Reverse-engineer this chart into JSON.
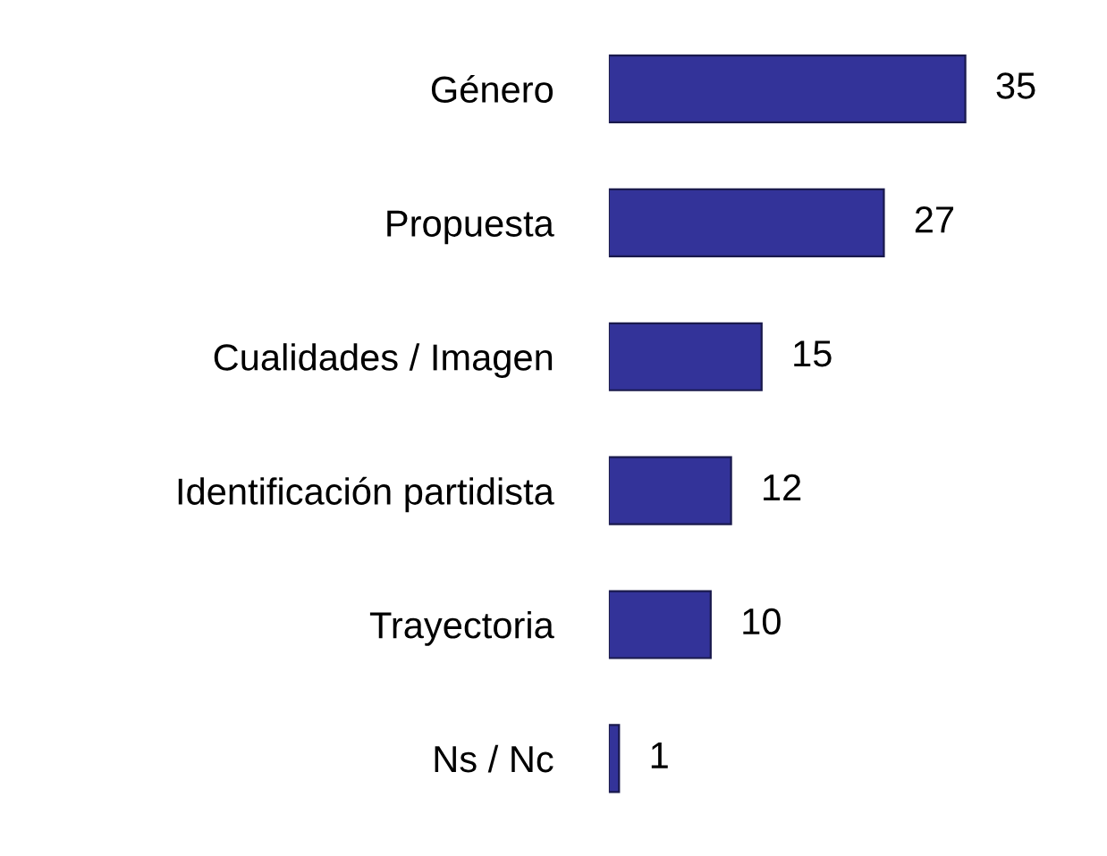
{
  "chart_data": {
    "type": "bar",
    "orientation": "horizontal",
    "categories": [
      "Género",
      "Propuesta",
      "Cualidades / Imagen",
      "Identificación partidista",
      "Trayectoria",
      "Ns / Nc"
    ],
    "values": [
      35,
      27,
      15,
      12,
      10,
      1
    ],
    "color": "#333399",
    "data_labels": true,
    "grid": false,
    "legend": false
  }
}
